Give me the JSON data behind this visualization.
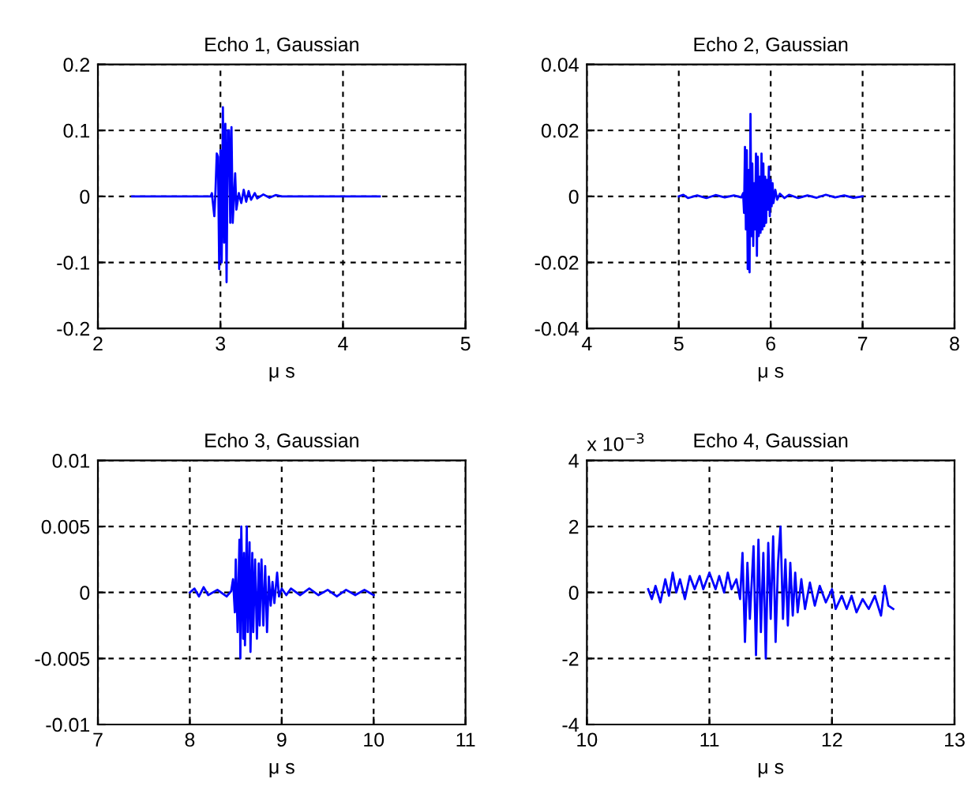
{
  "chart_data": [
    {
      "type": "line",
      "title": "Echo 1, Gaussian",
      "xlabel": "μ s",
      "xlim": [
        2,
        5
      ],
      "xticks": [
        2,
        3,
        4,
        5
      ],
      "ylim": [
        -0.2,
        0.2
      ],
      "yticks": [
        -0.2,
        -0.1,
        0,
        0.1,
        0.2
      ],
      "grid": true,
      "line_style": "solid",
      "series": [
        {
          "color": "#0000ff",
          "x": [
            2.28,
            2.92,
            2.93,
            2.95,
            2.96,
            2.97,
            2.98,
            2.99,
            3.0,
            3.01,
            3.02,
            3.03,
            3.04,
            3.05,
            3.06,
            3.07,
            3.08,
            3.09,
            3.1,
            3.12,
            3.13,
            3.15,
            3.17,
            3.19,
            3.21,
            3.23,
            3.25,
            3.28,
            3.3,
            3.35,
            3.4,
            3.45,
            3.5,
            4.3
          ],
          "values": [
            0,
            0,
            0.005,
            -0.03,
            0.01,
            0.065,
            0.06,
            -0.11,
            0.07,
            -0.1,
            0.135,
            -0.07,
            0.11,
            -0.13,
            0.1,
            0.1,
            -0.04,
            0.105,
            -0.04,
            0.035,
            -0.02,
            0.005,
            -0.01,
            0.01,
            -0.008,
            0.008,
            -0.005,
            0.005,
            -0.003,
            0.003,
            -0.002,
            0.002,
            0,
            0
          ]
        }
      ]
    },
    {
      "type": "line",
      "title": "Echo 2, Gaussian",
      "xlabel": "μ s",
      "xlim": [
        4,
        8
      ],
      "xticks": [
        4,
        5,
        6,
        7,
        8
      ],
      "ylim": [
        -0.04,
        0.04
      ],
      "yticks": [
        -0.04,
        -0.02,
        0,
        0.02,
        0.04
      ],
      "grid": true,
      "line_style": "solid",
      "series": [
        {
          "color": "#0000ff",
          "x": [
            5.0,
            5.05,
            5.1,
            5.2,
            5.3,
            5.4,
            5.5,
            5.6,
            5.68,
            5.7,
            5.71,
            5.72,
            5.73,
            5.74,
            5.75,
            5.76,
            5.77,
            5.78,
            5.79,
            5.8,
            5.81,
            5.82,
            5.83,
            5.84,
            5.85,
            5.86,
            5.87,
            5.88,
            5.89,
            5.9,
            5.91,
            5.92,
            5.93,
            5.94,
            5.95,
            5.96,
            5.97,
            5.98,
            5.99,
            6.0,
            6.01,
            6.02,
            6.03,
            6.05,
            6.07,
            6.1,
            6.15,
            6.2,
            6.3,
            6.4,
            6.5,
            6.6,
            6.7,
            6.8,
            6.9,
            7.0
          ],
          "values": [
            0,
            0.0005,
            -0.0005,
            0.0003,
            -0.0005,
            0.0004,
            -0.0003,
            0.0003,
            -0.0003,
            0.001,
            -0.005,
            0.015,
            -0.01,
            0.014,
            -0.022,
            0.008,
            -0.023,
            0.025,
            -0.012,
            0.01,
            -0.015,
            0.004,
            -0.01,
            0.013,
            -0.018,
            0.012,
            -0.012,
            0.006,
            -0.011,
            0.013,
            -0.01,
            0.01,
            -0.009,
            0.006,
            -0.008,
            0.005,
            -0.004,
            0.009,
            -0.006,
            0.005,
            -0.003,
            0.004,
            -0.002,
            0.002,
            -0.001,
            0.0008,
            -0.0005,
            0.0005,
            -0.0005,
            0.0003,
            -0.0004,
            0.0005,
            -0.0003,
            0.0003,
            -0.0004,
            0
          ]
        }
      ]
    },
    {
      "type": "line",
      "title": "Echo 3, Gaussian",
      "xlabel": "μ s",
      "xlim": [
        7,
        11
      ],
      "xticks": [
        7,
        8,
        9,
        10,
        11
      ],
      "ylim": [
        -0.01,
        0.01
      ],
      "yticks": [
        -0.01,
        -0.005,
        0,
        0.005,
        0.01
      ],
      "grid": true,
      "line_style": "solid",
      "series": [
        {
          "color": "#0000ff",
          "x": [
            8.0,
            8.05,
            8.1,
            8.15,
            8.2,
            8.3,
            8.4,
            8.45,
            8.47,
            8.49,
            8.5,
            8.52,
            8.54,
            8.55,
            8.56,
            8.58,
            8.59,
            8.6,
            8.62,
            8.63,
            8.65,
            8.66,
            8.68,
            8.69,
            8.71,
            8.73,
            8.75,
            8.76,
            8.78,
            8.8,
            8.82,
            8.84,
            8.86,
            8.88,
            8.9,
            8.92,
            8.95,
            8.97,
            9.0,
            9.05,
            9.1,
            9.2,
            9.3,
            9.4,
            9.5,
            9.6,
            9.7,
            9.8,
            9.9,
            10.0
          ],
          "values": [
            0,
            0.0003,
            -0.0003,
            0.0004,
            -0.0002,
            0.0002,
            -0.0003,
            0.0001,
            0.001,
            -0.0015,
            0.0025,
            -0.003,
            0.004,
            -0.005,
            0.005,
            -0.0035,
            0.003,
            -0.004,
            0.005,
            -0.003,
            0.0038,
            -0.0045,
            0.003,
            -0.003,
            0.0025,
            -0.0035,
            0.0022,
            -0.0025,
            0.0025,
            -0.0025,
            0.002,
            -0.003,
            0.0012,
            -0.001,
            0.0008,
            -0.0008,
            0.0015,
            -0.0003,
            0.0003,
            -0.0002,
            0.0003,
            -0.0002,
            0.0003,
            -0.0002,
            0.0002,
            -0.0003,
            0.0002,
            -0.0002,
            0.0002,
            -0.0002
          ]
        }
      ]
    },
    {
      "type": "line",
      "title": "Echo 4, Gaussian",
      "xlabel": "μ s",
      "annotations": [
        "x 10$^{−3}$"
      ],
      "xlim": [
        10,
        13
      ],
      "xticks": [
        10,
        11,
        12,
        13
      ],
      "ylim": [
        -4,
        4
      ],
      "yticks": [
        -4,
        -2,
        0,
        2,
        4
      ],
      "grid": true,
      "line_style": "solid",
      "series": [
        {
          "color": "#0000ff",
          "x": [
            10.5,
            10.53,
            10.56,
            10.6,
            10.64,
            10.67,
            10.7,
            10.73,
            10.76,
            10.8,
            10.84,
            10.88,
            10.92,
            10.95,
            11.0,
            11.05,
            11.08,
            11.12,
            11.15,
            11.18,
            11.22,
            11.25,
            11.27,
            11.29,
            11.31,
            11.33,
            11.36,
            11.38,
            11.4,
            11.42,
            11.44,
            11.46,
            11.48,
            11.5,
            11.52,
            11.54,
            11.56,
            11.58,
            11.6,
            11.62,
            11.64,
            11.66,
            11.68,
            11.7,
            11.72,
            11.75,
            11.78,
            11.82,
            11.86,
            11.9,
            11.95,
            12.0,
            12.03,
            12.08,
            12.12,
            12.16,
            12.2,
            12.25,
            12.3,
            12.35,
            12.4,
            12.43,
            12.46,
            12.5
          ],
          "values": [
            0.1,
            -0.2,
            0.2,
            -0.3,
            0.4,
            -0.1,
            0.6,
            0.0,
            0.4,
            -0.2,
            0.5,
            0.1,
            0.5,
            0.1,
            0.6,
            0.1,
            0.5,
            0.0,
            0.6,
            0.1,
            0.4,
            -0.2,
            1.2,
            -1.5,
            0.9,
            -0.8,
            1.4,
            -1.9,
            1.6,
            -1.2,
            1.2,
            -2.0,
            1.5,
            -0.8,
            1.7,
            -1.5,
            0.9,
            2.0,
            -0.8,
            1.0,
            -1.0,
            0.9,
            -0.7,
            0.6,
            -0.6,
            0.4,
            -0.5,
            0.3,
            -0.4,
            0.2,
            -0.3,
            0.1,
            -0.5,
            -0.1,
            -0.5,
            -0.1,
            -0.6,
            -0.2,
            -0.5,
            -0.1,
            -0.7,
            0.2,
            -0.4,
            -0.5
          ]
        }
      ]
    }
  ]
}
